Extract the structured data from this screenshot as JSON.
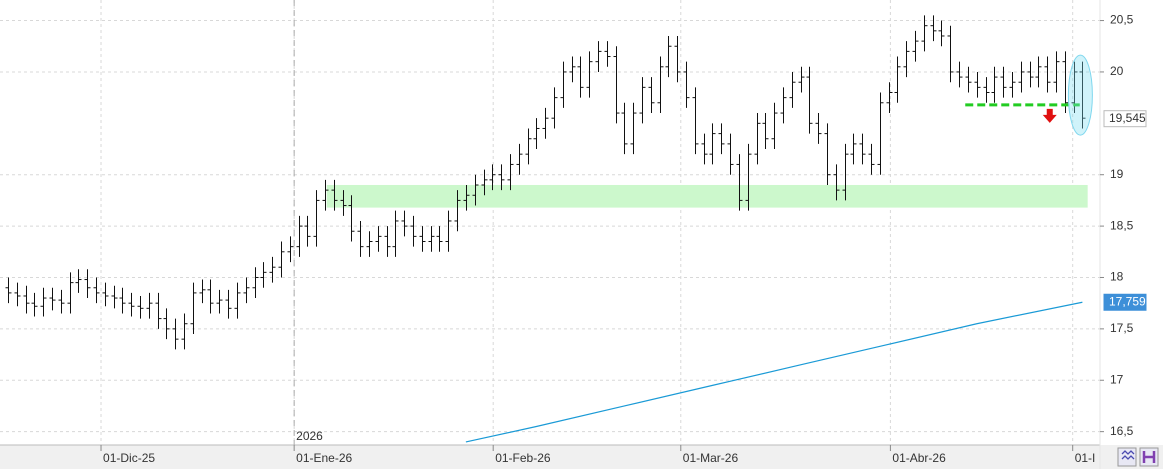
{
  "chart_data": {
    "type": "ohlc",
    "xlim": [
      -0.9,
      124
    ],
    "ylim": [
      16.37,
      20.7
    ],
    "xticks": [
      {
        "value": 10.57,
        "label": "01-Dic-25"
      },
      {
        "value": 32.5,
        "label": "01-Ene-26"
      },
      {
        "value": 55.1,
        "label": "01-Feb-26"
      },
      {
        "value": 76.4,
        "label": "01-Mar-26"
      },
      {
        "value": 100.2,
        "label": "01-Abr-26"
      },
      {
        "value": 120.9,
        "label": "01-I"
      }
    ],
    "yticks": [
      {
        "value": 20.5,
        "label": "20,5"
      },
      20,
      19,
      {
        "value": 18.5,
        "label": "18,5"
      },
      18,
      {
        "value": 17.5,
        "label": "17,5"
      },
      17,
      {
        "value": 16.5,
        "label": "16,5"
      }
    ],
    "grid": true,
    "color": "#111111",
    "open": [
      17.9,
      17.85,
      17.82,
      17.75,
      17.72,
      17.8,
      17.78,
      17.75,
      17.95,
      17.98,
      17.9,
      17.85,
      17.82,
      17.8,
      17.75,
      17.72,
      17.7,
      17.75,
      17.6,
      17.5,
      17.4,
      17.55,
      17.85,
      17.88,
      17.75,
      17.78,
      17.7,
      17.85,
      17.9,
      18.0,
      18.05,
      18.1,
      18.25,
      18.3,
      18.5,
      18.4,
      18.75,
      18.85,
      18.75,
      18.7,
      18.45,
      18.3,
      18.35,
      18.4,
      18.3,
      18.55,
      18.5,
      18.4,
      18.35,
      18.4,
      18.35,
      18.55,
      18.75,
      18.8,
      18.9,
      18.95,
      19.0,
      18.95,
      19.1,
      19.2,
      19.35,
      19.45,
      19.55,
      19.75,
      20.0,
      20.05,
      19.85,
      20.1,
      20.2,
      20.15,
      19.6,
      19.3,
      19.6,
      19.85,
      19.7,
      20.05,
      20.25,
      20.0,
      19.75,
      19.3,
      19.2,
      19.4,
      19.3,
      19.1,
      18.75,
      19.2,
      19.5,
      19.35,
      19.6,
      19.75,
      19.9,
      19.95,
      19.5,
      19.4,
      19.0,
      18.85,
      19.2,
      19.3,
      19.2,
      19.1,
      19.7,
      19.8,
      20.05,
      20.2,
      20.3,
      20.45,
      20.4,
      20.35,
      20.0,
      19.95,
      19.9,
      19.85,
      19.8,
      19.95,
      19.85,
      19.9,
      20.0,
      19.95,
      20.05,
      19.9,
      20.1,
      19.7,
      20.0
    ],
    "high": [
      18.0,
      17.95,
      17.92,
      17.85,
      17.9,
      17.9,
      17.88,
      18.05,
      18.08,
      18.08,
      18.0,
      17.95,
      17.92,
      17.9,
      17.85,
      17.82,
      17.85,
      17.85,
      17.7,
      17.6,
      17.65,
      17.95,
      17.98,
      17.98,
      17.88,
      17.88,
      17.95,
      18.0,
      18.1,
      18.15,
      18.2,
      18.35,
      18.4,
      18.6,
      18.6,
      18.85,
      18.95,
      18.95,
      18.85,
      18.8,
      18.55,
      18.45,
      18.5,
      18.5,
      18.65,
      18.65,
      18.6,
      18.5,
      18.5,
      18.5,
      18.65,
      18.85,
      18.9,
      19.0,
      19.05,
      19.1,
      19.1,
      19.2,
      19.3,
      19.45,
      19.55,
      19.65,
      19.85,
      20.1,
      20.15,
      20.15,
      20.2,
      20.3,
      20.3,
      20.25,
      19.7,
      19.7,
      19.95,
      19.95,
      20.15,
      20.35,
      20.35,
      20.1,
      19.85,
      19.4,
      19.5,
      19.5,
      19.4,
      19.2,
      19.3,
      19.6,
      19.6,
      19.7,
      19.85,
      20.0,
      20.05,
      20.05,
      19.6,
      19.5,
      19.1,
      19.3,
      19.4,
      19.4,
      19.3,
      19.8,
      19.9,
      20.15,
      20.3,
      20.4,
      20.55,
      20.55,
      20.5,
      20.45,
      20.1,
      20.05,
      20.0,
      19.95,
      20.05,
      20.05,
      20.0,
      20.1,
      20.1,
      20.15,
      20.15,
      20.2,
      20.2,
      20.1,
      20.1
    ],
    "low": [
      17.75,
      17.72,
      17.65,
      17.62,
      17.62,
      17.68,
      17.65,
      17.65,
      17.85,
      17.8,
      17.75,
      17.72,
      17.7,
      17.65,
      17.62,
      17.6,
      17.6,
      17.5,
      17.4,
      17.3,
      17.3,
      17.45,
      17.75,
      17.65,
      17.65,
      17.6,
      17.6,
      17.75,
      17.8,
      17.9,
      17.95,
      18.0,
      18.15,
      18.2,
      18.3,
      18.3,
      18.65,
      18.65,
      18.6,
      18.35,
      18.2,
      18.2,
      18.25,
      18.2,
      18.2,
      18.4,
      18.3,
      18.25,
      18.25,
      18.25,
      18.25,
      18.45,
      18.65,
      18.7,
      18.8,
      18.85,
      18.85,
      18.85,
      19.0,
      19.1,
      19.25,
      19.35,
      19.45,
      19.65,
      19.9,
      19.75,
      19.75,
      20.0,
      20.05,
      19.5,
      19.2,
      19.2,
      19.5,
      19.6,
      19.6,
      19.95,
      19.9,
      19.65,
      19.2,
      19.1,
      19.1,
      19.2,
      19.0,
      18.65,
      18.65,
      19.1,
      19.25,
      19.25,
      19.5,
      19.65,
      19.8,
      19.4,
      19.3,
      18.9,
      18.75,
      18.75,
      19.1,
      19.1,
      19.0,
      19.0,
      19.6,
      19.7,
      19.95,
      20.1,
      20.2,
      20.3,
      20.25,
      19.9,
      19.85,
      19.8,
      19.75,
      19.7,
      19.7,
      19.75,
      19.75,
      19.8,
      19.85,
      19.85,
      19.8,
      19.8,
      19.6,
      19.6,
      19.45
    ],
    "close": [
      17.85,
      17.82,
      17.75,
      17.72,
      17.8,
      17.78,
      17.75,
      17.95,
      17.98,
      17.9,
      17.85,
      17.82,
      17.8,
      17.75,
      17.72,
      17.7,
      17.75,
      17.6,
      17.5,
      17.4,
      17.55,
      17.85,
      17.88,
      17.75,
      17.78,
      17.7,
      17.85,
      17.9,
      18.0,
      18.05,
      18.1,
      18.25,
      18.3,
      18.5,
      18.4,
      18.75,
      18.85,
      18.75,
      18.7,
      18.45,
      18.3,
      18.35,
      18.4,
      18.3,
      18.55,
      18.5,
      18.4,
      18.35,
      18.4,
      18.35,
      18.55,
      18.75,
      18.8,
      18.9,
      18.95,
      19.0,
      18.95,
      19.1,
      19.2,
      19.35,
      19.45,
      19.55,
      19.75,
      20.0,
      20.05,
      19.85,
      20.1,
      20.2,
      20.15,
      19.6,
      19.3,
      19.6,
      19.85,
      19.7,
      20.05,
      20.25,
      20.0,
      19.75,
      19.3,
      19.2,
      19.4,
      19.3,
      19.1,
      18.75,
      19.2,
      19.5,
      19.35,
      19.6,
      19.75,
      19.9,
      19.95,
      19.5,
      19.4,
      19.0,
      18.85,
      19.2,
      19.3,
      19.2,
      19.1,
      19.7,
      19.8,
      20.05,
      20.2,
      20.3,
      20.45,
      20.4,
      20.35,
      20.0,
      19.95,
      19.9,
      19.85,
      19.8,
      19.95,
      19.85,
      19.9,
      20.0,
      19.95,
      20.05,
      19.9,
      20.1,
      19.7,
      20.0,
      19.55
    ],
    "overlay": {
      "type": "line",
      "color": "#1a9ad6",
      "x": [
        52,
        60,
        70,
        80,
        90,
        100,
        110,
        122
      ],
      "values": [
        16.4,
        16.55,
        16.75,
        16.95,
        17.15,
        17.35,
        17.55,
        17.759
      ]
    },
    "price_labels": [
      {
        "value": 19.545,
        "label": "19,545",
        "color": "#ffffff",
        "text_color": "#333333"
      },
      {
        "value": 17.759,
        "label": "17,759",
        "color": "#3d8fd8",
        "text_color": "#ffffff"
      }
    ],
    "zone": {
      "xlim": [
        36.2,
        122.6
      ],
      "ylim": [
        18.68,
        18.9
      ],
      "color": "#ccf8cc"
    },
    "support": {
      "x": [
        108.7,
        121.7
      ],
      "y": 19.68,
      "color": "#22cc22"
    },
    "year_marker": {
      "x": 32.5,
      "label": "2026"
    }
  }
}
